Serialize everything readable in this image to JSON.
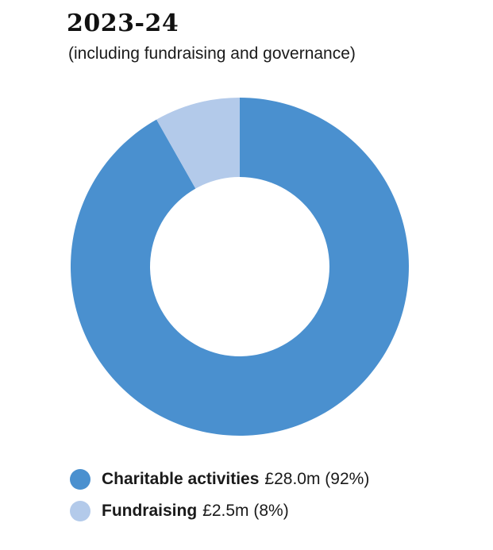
{
  "chart_data": {
    "type": "pie",
    "variant": "donut",
    "title": "2023-24",
    "subtitle": "(including fundraising and governance)",
    "slices": [
      {
        "label": "Charitable activities",
        "value_text": "£28.0m (92%)",
        "amount_m": 28.0,
        "percent": 92,
        "color": "#4a90cf"
      },
      {
        "label": "Fundraising",
        "value_text": "£2.5m (8%)",
        "amount_m": 2.5,
        "percent": 8,
        "color": "#b3caea"
      }
    ],
    "legend_placement": "bottom-left"
  }
}
